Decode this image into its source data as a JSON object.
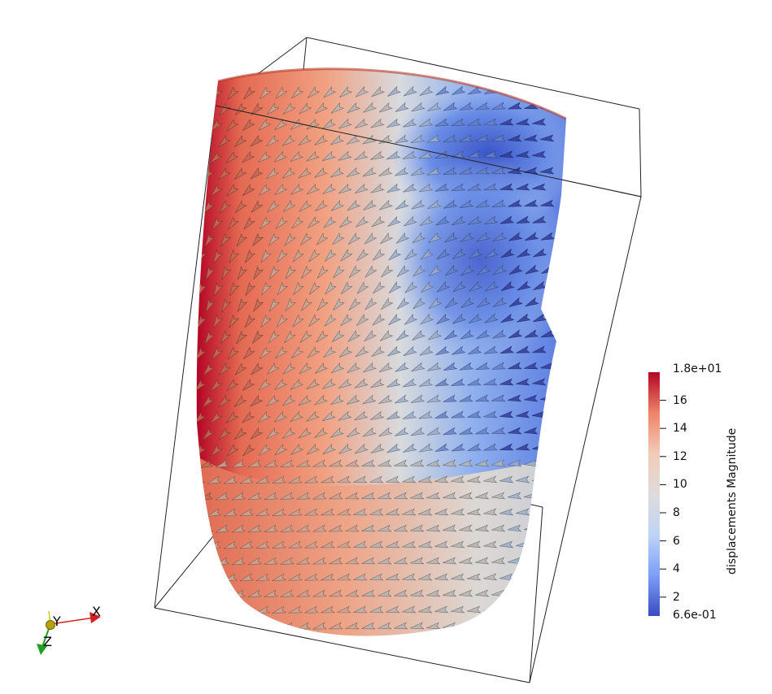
{
  "colorbar": {
    "title": "displacements Magnitude",
    "max_label": "1.8e+01",
    "min_label": "6.6e-01",
    "ticks": [
      "16",
      "14",
      "12",
      "10",
      "8",
      "6",
      "4",
      "2"
    ],
    "range": [
      0.66,
      18
    ],
    "tick_values": [
      16,
      14,
      12,
      10,
      8,
      6,
      4,
      2
    ],
    "colormap": [
      "#3b4cc0",
      "#7b9ff9",
      "#c0d4f5",
      "#dddcdc",
      "#f2cbb7",
      "#ee8468",
      "#b40426"
    ]
  },
  "orientation_axes": {
    "x_label": "X",
    "y_label": "Y",
    "z_label": "Z",
    "x_color": "#d42020",
    "y_color": "#c8c820",
    "z_color": "#20a020"
  },
  "scene": {
    "background": "#ffffff",
    "outline_color": "#222222",
    "glyph_type": "arrow-glyphs"
  }
}
